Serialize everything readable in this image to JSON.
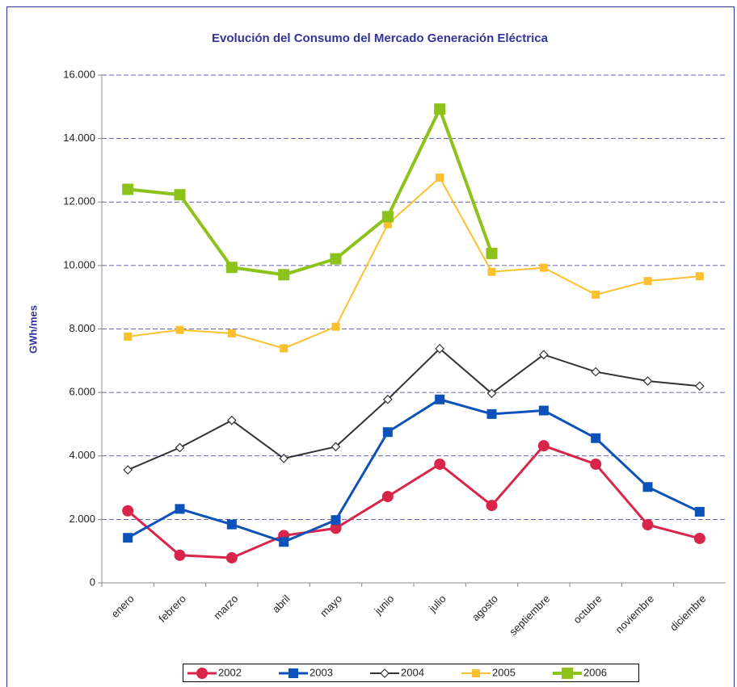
{
  "chart_data": {
    "type": "line",
    "title": "Evolución del Consumo del Mercado Generación Eléctrica",
    "y_label": "GWh/mes",
    "categories": [
      "enero",
      "febrero",
      "marzo",
      "abril",
      "mayo",
      "junio",
      "julio",
      "agosto",
      "septiembre",
      "octubre",
      "noviembre",
      "diciembre"
    ],
    "series": [
      {
        "name": "2002",
        "color": "#d9254a",
        "marker": "circle",
        "values": [
          2270,
          870,
          790,
          1490,
          1720,
          2720,
          3740,
          2440,
          4320,
          3740,
          1830,
          1400
        ]
      },
      {
        "name": "2003",
        "color": "#0d52b8",
        "marker": "square",
        "values": [
          1420,
          2330,
          1840,
          1290,
          1980,
          4750,
          5780,
          5320,
          5430,
          4560,
          3020,
          2240
        ]
      },
      {
        "name": "2004",
        "color": "#333333",
        "marker": "diamond",
        "values": [
          3560,
          4260,
          5120,
          3920,
          4290,
          5780,
          7380,
          5970,
          7190,
          6650,
          6360,
          6200
        ]
      },
      {
        "name": "2005",
        "color": "#fbc02d",
        "marker": "small-square",
        "values": [
          7760,
          7970,
          7860,
          7390,
          8070,
          11300,
          12770,
          9800,
          9930,
          9080,
          9510,
          9660
        ]
      },
      {
        "name": "2006",
        "color": "#8cc21a",
        "marker": "big-square",
        "values": [
          12400,
          12230,
          9940,
          9710,
          10210,
          11540,
          14930,
          10380,
          null,
          null,
          null,
          null
        ]
      }
    ],
    "ylim": [
      0,
      16000
    ],
    "yticks": [
      0,
      {
        "value": 2000,
        "label": "2.000"
      },
      {
        "value": 4000,
        "label": "4.000"
      },
      {
        "value": 6000,
        "label": "6.000"
      },
      {
        "value": 8000,
        "label": "8.000"
      },
      {
        "value": 10000,
        "label": "10.000"
      },
      {
        "value": 12000,
        "label": "12.000"
      },
      {
        "value": 14000,
        "label": "14.000"
      },
      {
        "value": 16000,
        "label": "16.000"
      }
    ],
    "grid": true,
    "legend": "bottom"
  }
}
